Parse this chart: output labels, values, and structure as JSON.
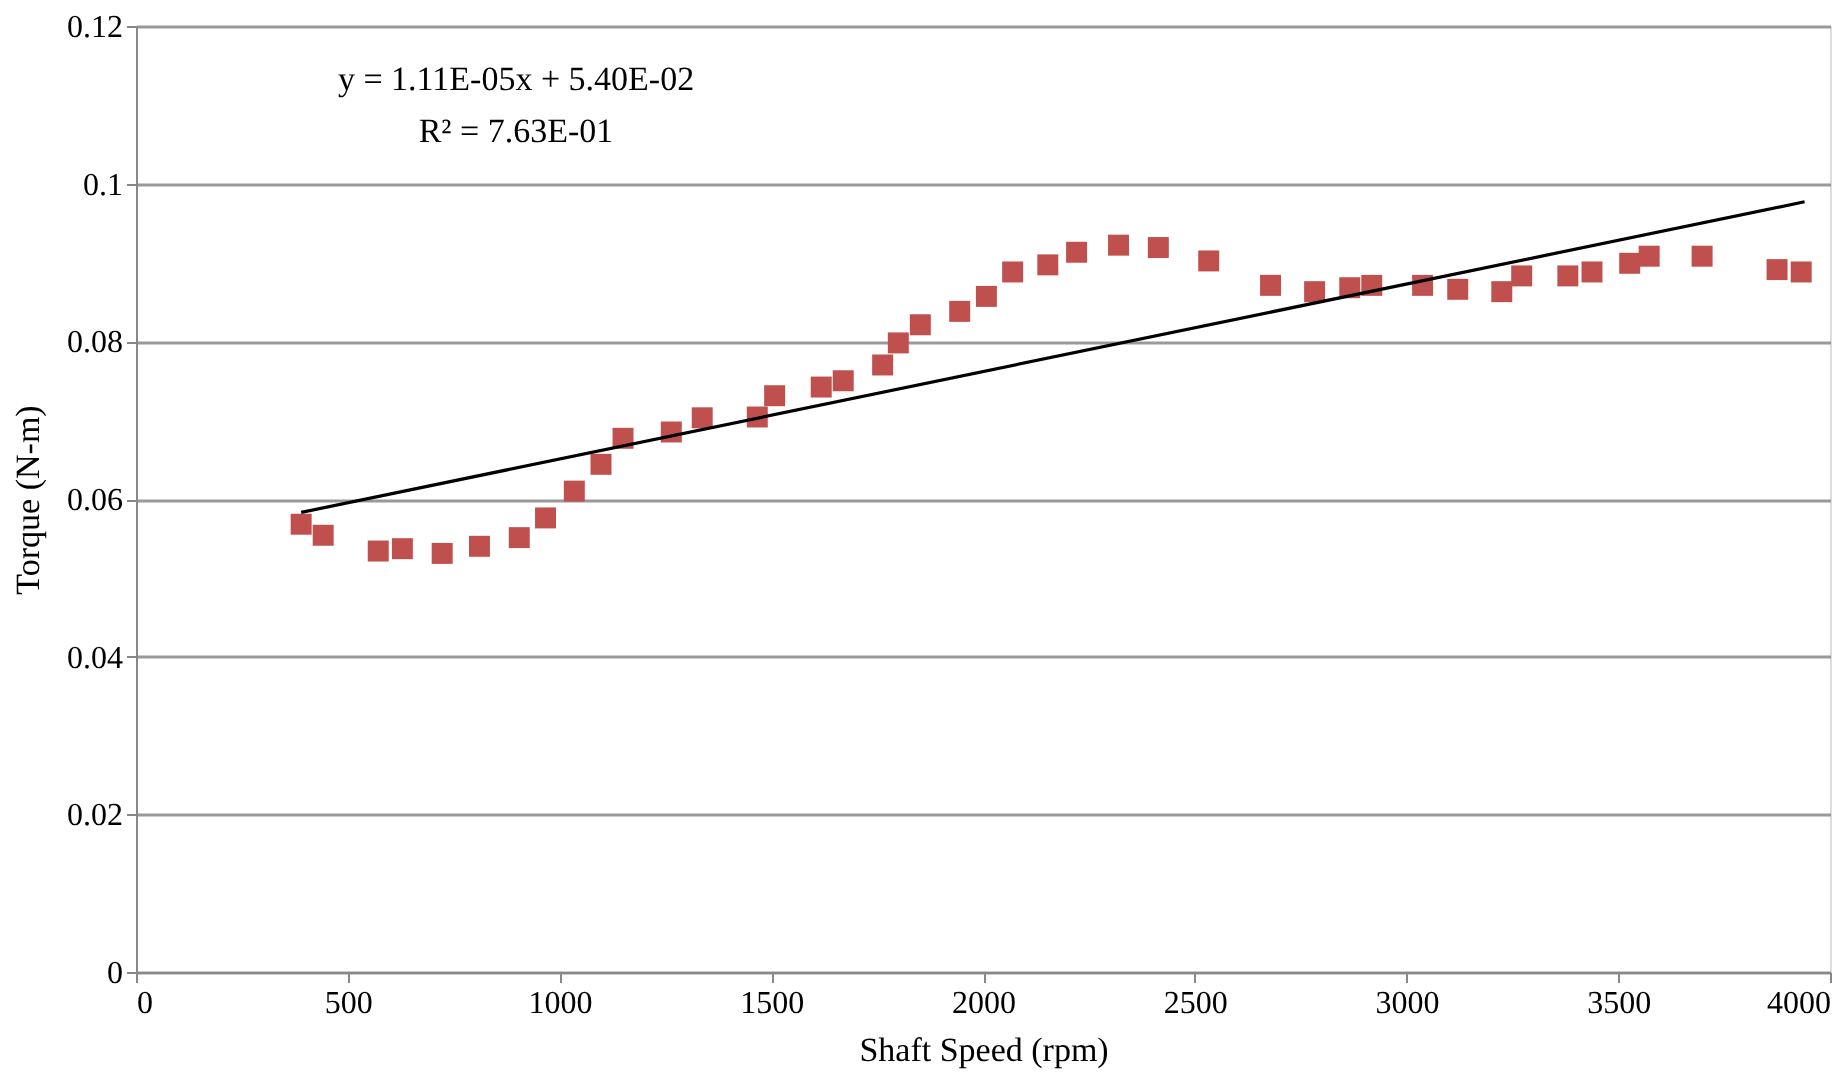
{
  "chart_data": {
    "type": "scatter",
    "xlabel": "Shaft Speed (rpm)",
    "ylabel": "Torque (N-m)",
    "xlim": [
      0,
      4000
    ],
    "xticks": [
      0,
      500,
      1000,
      1500,
      2000,
      2500,
      3000,
      3500,
      4000
    ],
    "ylim": [
      0,
      0.12
    ],
    "yticks": [
      0,
      0.02,
      0.04,
      0.06,
      0.08,
      0.1,
      0.12
    ],
    "grid": "y",
    "annotations": [
      "y = 1.11E-05x + 5.40E-02",
      "R² = 7.63E-01"
    ],
    "series": [
      {
        "color": "#c0504d",
        "marker": "square",
        "x": [
          390,
          442,
          572,
          629,
          723,
          811,
          905,
          967,
          1035,
          1098,
          1150,
          1264,
          1337,
          1467,
          1508,
          1618,
          1670,
          1763,
          1800,
          1852,
          1945,
          2008,
          2070,
          2153,
          2221,
          2320,
          2414,
          2533,
          2679,
          2783,
          2866,
          2918,
          3038,
          3121,
          3225,
          3272,
          3381,
          3438,
          3527,
          3573,
          3698,
          3875,
          3932
        ],
        "values": [
          0.0568,
          0.0554,
          0.0534,
          0.0537,
          0.0531,
          0.054,
          0.0551,
          0.0576,
          0.061,
          0.0644,
          0.0677,
          0.0685,
          0.0703,
          0.0704,
          0.0731,
          0.0742,
          0.075,
          0.077,
          0.0798,
          0.0821,
          0.0838,
          0.0857,
          0.0888,
          0.0897,
          0.0913,
          0.0922,
          0.0919,
          0.0902,
          0.0871,
          0.0863,
          0.0868,
          0.0871,
          0.0871,
          0.0866,
          0.0863,
          0.0883,
          0.0883,
          0.0888,
          0.0899,
          0.0908,
          0.0908,
          0.0891,
          0.0888
        ]
      },
      {
        "type": "line",
        "color": "#000000",
        "line_style": "solid",
        "x": [
          390,
          3940
        ],
        "values": [
          0.0583,
          0.0977
        ]
      }
    ]
  }
}
